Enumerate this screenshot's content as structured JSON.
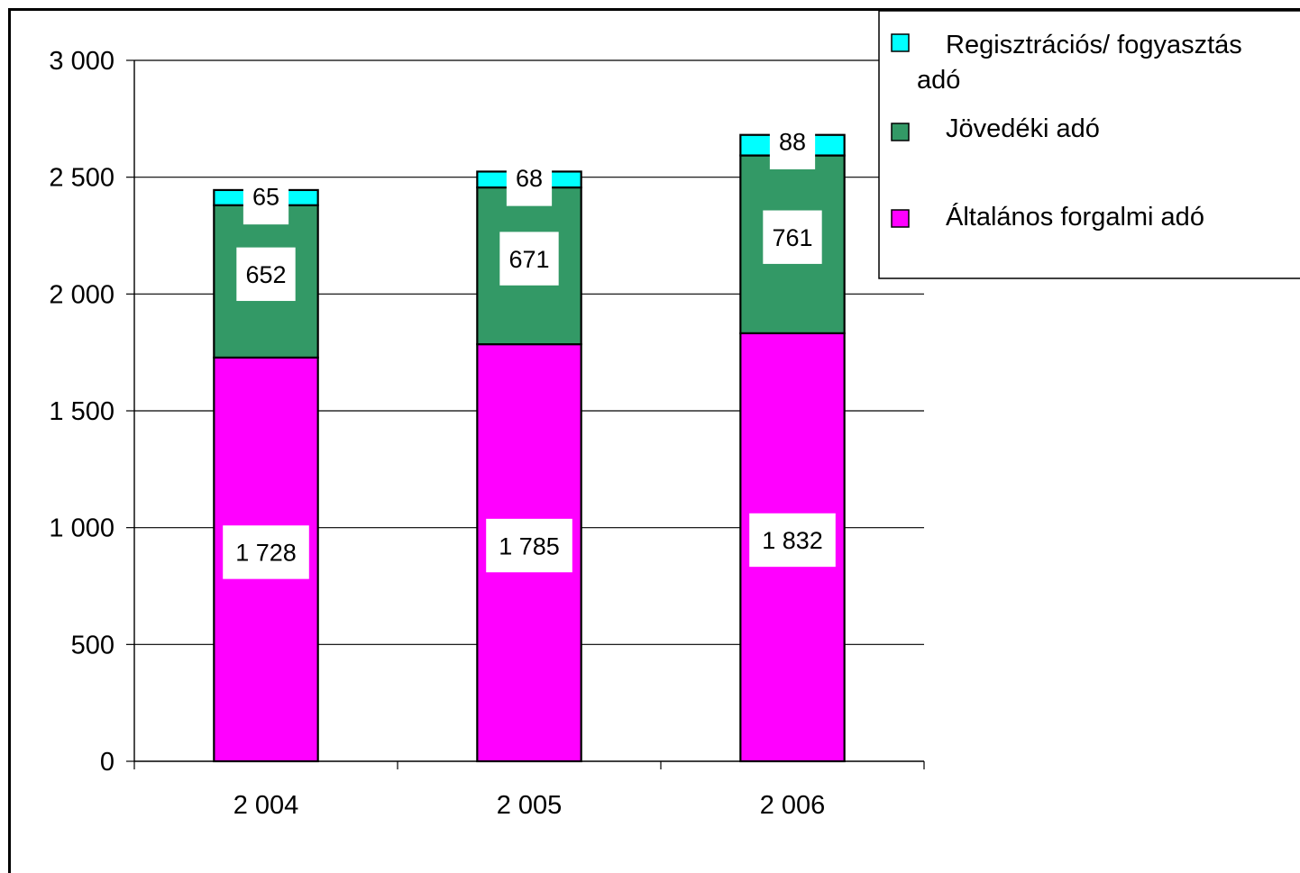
{
  "chart_data": {
    "type": "bar",
    "stacked": true,
    "categories": [
      "2 004",
      "2 005",
      "2 006"
    ],
    "series": [
      {
        "name": "Általános forgalmi adó",
        "values": [
          1728,
          1785,
          1832
        ],
        "labels": [
          "1 728",
          "1 785",
          "1 832"
        ],
        "color": "#ff00ff"
      },
      {
        "name": "Jövedéki adó",
        "values": [
          652,
          671,
          761
        ],
        "labels": [
          "652",
          "671",
          "761"
        ],
        "color": "#339966"
      },
      {
        "name": "Regisztrációs/ fogyasztás adó",
        "values": [
          65,
          68,
          88
        ],
        "labels": [
          "65",
          "68",
          "88"
        ],
        "color": "#00ffff"
      }
    ],
    "ylim": [
      0,
      3000
    ],
    "yticks": [
      0,
      500,
      1000,
      1500,
      2000,
      2500,
      3000
    ],
    "ytick_labels": [
      "0",
      "500",
      "1 000",
      "1 500",
      "2 000",
      "2 500",
      "3 000"
    ],
    "grid": true,
    "legend": {
      "position": "top-right",
      "entries": [
        {
          "line1": "Regisztrációs/ fogyasztás",
          "line2": "adó",
          "color": "#00ffff"
        },
        {
          "line1": "Jövedéki adó",
          "line2": "",
          "color": "#339966"
        },
        {
          "line1": "Általános forgalmi adó",
          "line2": "",
          "color": "#ff00ff"
        }
      ]
    },
    "title": "",
    "xlabel": "",
    "ylabel": ""
  }
}
